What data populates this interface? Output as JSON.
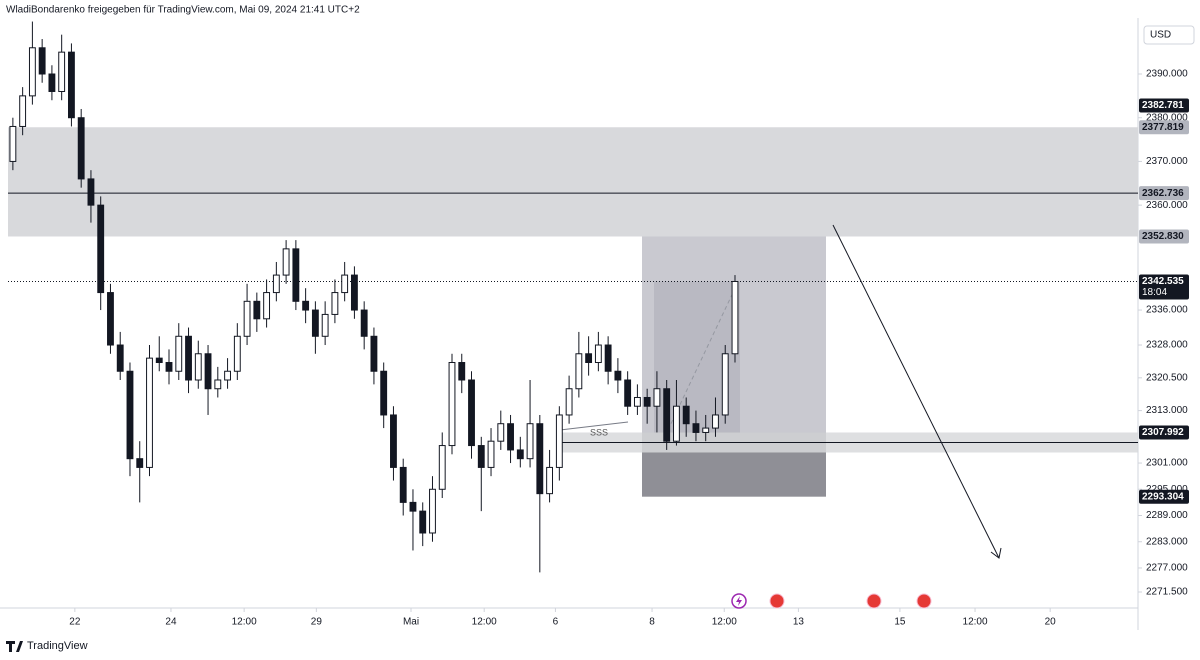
{
  "header": {
    "title": "WladiBondarenko freigegeben für TradingView.com, Mai 09, 2024 21:41 UTC+2"
  },
  "chart_data": {
    "type": "candlestick",
    "currency": "USD",
    "up_color": "#ffffff",
    "down_color": "#131722",
    "open": [
      2370,
      2378,
      2385,
      2396,
      2390,
      2386,
      2395,
      2380,
      2366,
      2360,
      2340,
      2328,
      2322,
      2302,
      2300,
      2325,
      2324,
      2322,
      2330,
      2320,
      2326,
      2318,
      2320,
      2322,
      2330,
      2338,
      2334,
      2340,
      2344,
      2350,
      2338,
      2336,
      2330,
      2335,
      2340,
      2344,
      2336,
      2330,
      2322,
      2312,
      2300,
      2292,
      2290,
      2285,
      2295,
      2305,
      2324,
      2320,
      2305,
      2300,
      2306,
      2310,
      2304,
      2302,
      2310,
      2294,
      2300,
      2312,
      2318,
      2326,
      2324,
      2328,
      2322,
      2320,
      2314,
      2316,
      2314,
      2318,
      2306,
      2314,
      2310,
      2308,
      2309,
      2312,
      2326
    ],
    "high": [
      2380,
      2387,
      2402,
      2398,
      2392,
      2399,
      2397,
      2382,
      2368,
      2362,
      2342,
      2331,
      2324,
      2306,
      2328,
      2330,
      2327,
      2333,
      2332,
      2329,
      2328,
      2323,
      2325,
      2333,
      2342,
      2340,
      2343,
      2347,
      2352,
      2352,
      2341,
      2338,
      2338,
      2343,
      2347,
      2346,
      2338,
      2332,
      2324,
      2314,
      2302,
      2295,
      2292,
      2298,
      2308,
      2326,
      2326,
      2322,
      2307,
      2309,
      2313,
      2312,
      2307,
      2320,
      2312,
      2304,
      2314,
      2321,
      2331,
      2330,
      2331,
      2330,
      2325,
      2322,
      2319,
      2318,
      2322,
      2320,
      2320,
      2316,
      2313,
      2312,
      2316,
      2328,
      2344
    ],
    "low": [
      2368,
      2376,
      2383,
      2388,
      2384,
      2384,
      2378,
      2364,
      2356,
      2336,
      2326,
      2320,
      2298,
      2292,
      2298,
      2322,
      2319,
      2320,
      2317,
      2318,
      2312,
      2316,
      2318,
      2320,
      2328,
      2331,
      2332,
      2338,
      2342,
      2336,
      2333,
      2326,
      2328,
      2333,
      2338,
      2334,
      2327,
      2319,
      2309,
      2297,
      2289,
      2281,
      2282,
      2283,
      2293,
      2303,
      2317,
      2302,
      2290,
      2298,
      2304,
      2301,
      2300,
      2300,
      2276,
      2292,
      2297,
      2310,
      2316,
      2321,
      2322,
      2319,
      2317,
      2312,
      2312,
      2310,
      2308,
      2304,
      2305,
      2307,
      2306,
      2306,
      2307,
      2310,
      2324
    ],
    "close": [
      2378,
      2385,
      2396,
      2390,
      2386,
      2395,
      2380,
      2366,
      2360,
      2340,
      2328,
      2322,
      2302,
      2300,
      2325,
      2324,
      2322,
      2330,
      2320,
      2326,
      2318,
      2320,
      2322,
      2330,
      2338,
      2334,
      2340,
      2344,
      2350,
      2338,
      2336,
      2330,
      2335,
      2340,
      2344,
      2336,
      2330,
      2322,
      2312,
      2300,
      2292,
      2290,
      2285,
      2295,
      2305,
      2324,
      2320,
      2305,
      2300,
      2306,
      2310,
      2304,
      2302,
      2310,
      2294,
      2300,
      2312,
      2318,
      2326,
      2324,
      2328,
      2322,
      2320,
      2314,
      2316,
      2314,
      2318,
      2306,
      2314,
      2310,
      2308,
      2309,
      2312,
      2326,
      2342.535
    ],
    "xlim": [
      -0.5,
      115.3
    ],
    "xticks": [
      {
        "value": 6.35,
        "label": "22"
      },
      {
        "value": 16.2,
        "label": "24"
      },
      {
        "value": 23.7,
        "label": "12:00"
      },
      {
        "value": 31.1,
        "label": "29"
      },
      {
        "value": 40.8,
        "label": "Mai"
      },
      {
        "value": 48.3,
        "label": "12:00"
      },
      {
        "value": 55.6,
        "label": "6"
      },
      {
        "value": 65.5,
        "label": "8"
      },
      {
        "value": 72.9,
        "label": "12:00"
      },
      {
        "value": 80.5,
        "label": "13"
      },
      {
        "value": 90.9,
        "label": "15"
      },
      {
        "value": 98.6,
        "label": "12:00"
      },
      {
        "value": 106.3,
        "label": "20"
      }
    ],
    "ylim": [
      2267.84,
      2406.93
    ],
    "yticks": [
      {
        "value": 2390,
        "label": "2390.000"
      },
      {
        "value": 2380,
        "label": "2380.000"
      },
      {
        "value": 2370,
        "label": "2370.000"
      },
      {
        "value": 2360,
        "label": "2360.000"
      },
      {
        "value": 2336,
        "label": "2336.000"
      },
      {
        "value": 2328,
        "label": "2328.000"
      },
      {
        "value": 2320.5,
        "label": "2320.500"
      },
      {
        "value": 2313,
        "label": "2313.000"
      },
      {
        "value": 2301,
        "label": "2301.000"
      },
      {
        "value": 2295,
        "label": "2295.000"
      },
      {
        "value": 2289,
        "label": "2289.000"
      },
      {
        "value": 2283,
        "label": "2283.000"
      },
      {
        "value": 2277,
        "label": "2277.000"
      },
      {
        "value": 2271.5,
        "label": "2271.500"
      }
    ],
    "price_labels": [
      {
        "value": 2382.781,
        "label": "2382.781",
        "color": "#131722"
      },
      {
        "value": 2377.819,
        "label": "2377.819",
        "color": "#b2b5be"
      },
      {
        "value": 2362.736,
        "label": "2362.736",
        "color": "#b2b5be"
      },
      {
        "value": 2352.83,
        "label": "2352.830",
        "color": "#b2b5be"
      },
      {
        "value": 2307.992,
        "label": "2307.992",
        "color": "#131722"
      },
      {
        "value": 2293.304,
        "label": "2293.304",
        "color": "#131722"
      }
    ],
    "last_price": {
      "value": 2342.535,
      "label": "2342.535"
    },
    "countdown": "18:04",
    "annotation": "SSS"
  },
  "footer": {
    "brand": "TradingView"
  }
}
